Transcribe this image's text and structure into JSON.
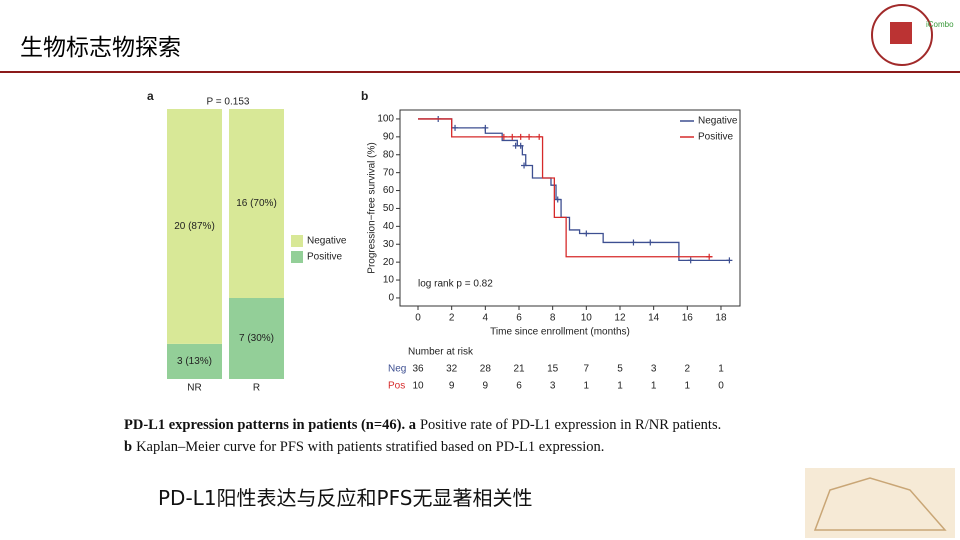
{
  "slide": {
    "title": "生物标志物探索",
    "logo_text": "iCombo",
    "caption": {
      "line1_bold": "PD-L1 expression patterns in patients (n=46). a",
      "line1_text": "Positive rate of PD-L1 expression in R/NR patients.",
      "line2_bold": "b",
      "line2_text": "Kaplan–Meier curve for PFS with patients stratified based on PD-L1 expression."
    },
    "conclusion": "PD-L1阳性表达与反应和PFS无显著相关性"
  },
  "chart_data": [
    {
      "type": "stacked-bar",
      "panel": "a",
      "title": "P = 0.153",
      "categories": [
        "NR",
        "R"
      ],
      "series": [
        {
          "name": "Positive",
          "color": "#93cf98",
          "values": [
            13,
            30
          ],
          "value_labels": [
            "3 (13%)",
            "7 (30%)"
          ]
        },
        {
          "name": "Negative",
          "color": "#d8e897",
          "values": [
            87,
            70
          ],
          "value_labels": [
            "20 (87%)",
            "16 (70%)"
          ]
        }
      ],
      "ylim": [
        0,
        100
      ],
      "legend": "right"
    },
    {
      "type": "step",
      "panel": "b",
      "xlabel": "Time since enrollment (months)",
      "ylabel": "Progression−free survival (%)",
      "annotation": "log rank p = 0.82",
      "series": [
        {
          "name": "Negative",
          "color": "#3d4f91",
          "x": [
            0,
            2,
            2,
            4,
            4,
            5,
            5,
            5.9,
            5.9,
            6.2,
            6.2,
            6.4,
            6.4,
            6.8,
            6.8,
            7.9,
            7.9,
            8.2,
            8.2,
            8.5,
            8.5,
            9,
            9,
            9.6,
            9.6,
            11,
            11,
            15.5,
            15.5,
            18.5
          ],
          "values": [
            100,
            100,
            95,
            95,
            92,
            92,
            88,
            88,
            85,
            85,
            80,
            80,
            74,
            74,
            67,
            67,
            63,
            63,
            55,
            55,
            45,
            45,
            38,
            38,
            36,
            36,
            31,
            31,
            21,
            21
          ],
          "censor_x": [
            1.2,
            2.2,
            4,
            5.8,
            6.1,
            6.3,
            8.3,
            10,
            12.8,
            13.8,
            16.2,
            18.5
          ],
          "censor_values": [
            100,
            95,
            95,
            85,
            85,
            74,
            55,
            36,
            31,
            31,
            21,
            21
          ]
        },
        {
          "name": "Positive",
          "color": "#d62a2a",
          "x": [
            0,
            2,
            2,
            7.4,
            7.4,
            8.1,
            8.1,
            8.8,
            8.8,
            17.5
          ],
          "values": [
            100,
            100,
            90,
            90,
            67,
            67,
            45,
            45,
            23,
            23
          ],
          "censor_x": [
            5.1,
            5.6,
            6.1,
            6.6,
            7.2,
            17.3
          ],
          "censor_values": [
            90,
            90,
            90,
            90,
            90,
            23
          ]
        }
      ],
      "xlim": [
        -1.07,
        19.13
      ],
      "ylim": [
        -4.5,
        105
      ],
      "xticks": [
        0,
        2,
        4,
        6,
        8,
        10,
        12,
        14,
        16,
        18
      ],
      "yticks": [
        0,
        10,
        20,
        30,
        40,
        50,
        60,
        70,
        80,
        90,
        100
      ],
      "legend": "upper right",
      "risk_table": {
        "title": "Number at risk",
        "rows": [
          {
            "name": "Neg",
            "values": [
              36,
              32,
              28,
              21,
              15,
              7,
              5,
              3,
              2,
              1
            ]
          },
          {
            "name": "Pos",
            "values": [
              10,
              9,
              9,
              6,
              3,
              1,
              1,
              1,
              1,
              0
            ]
          }
        ]
      }
    }
  ]
}
